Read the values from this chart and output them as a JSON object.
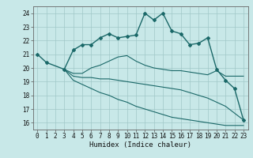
{
  "xlabel": "Humidex (Indice chaleur)",
  "bg_color": "#c8e8e8",
  "grid_color": "#a0c8c8",
  "line_color": "#1a6868",
  "xlim": [
    -0.5,
    23.5
  ],
  "ylim": [
    15.5,
    24.5
  ],
  "xticks": [
    0,
    1,
    2,
    3,
    4,
    5,
    6,
    7,
    8,
    9,
    10,
    11,
    12,
    13,
    14,
    15,
    16,
    17,
    18,
    19,
    20,
    21,
    22,
    23
  ],
  "yticks": [
    16,
    17,
    18,
    19,
    20,
    21,
    22,
    23,
    24
  ],
  "line1_x": [
    0,
    1,
    3,
    4,
    5,
    6,
    7,
    8,
    9,
    10,
    11,
    12,
    13,
    14,
    15,
    16,
    17,
    18,
    19,
    20,
    21,
    22,
    23
  ],
  "line1_y": [
    21.0,
    20.4,
    19.9,
    21.3,
    21.7,
    21.7,
    22.2,
    22.5,
    22.2,
    22.3,
    22.4,
    24.0,
    23.5,
    24.0,
    22.7,
    22.5,
    21.7,
    21.8,
    22.2,
    19.9,
    19.1,
    18.5,
    16.2
  ],
  "line2_x": [
    3,
    4,
    5,
    6,
    7,
    8,
    9,
    10,
    11,
    12,
    13,
    14,
    15,
    16,
    17,
    18,
    19,
    20,
    21,
    22,
    23
  ],
  "line2_y": [
    19.9,
    19.6,
    19.6,
    20.0,
    20.2,
    20.5,
    20.8,
    20.9,
    20.5,
    20.2,
    20.0,
    19.9,
    19.8,
    19.8,
    19.7,
    19.6,
    19.5,
    19.8,
    19.4,
    19.4,
    19.4
  ],
  "line3_x": [
    3,
    4,
    5,
    6,
    7,
    8,
    9,
    10,
    11,
    12,
    13,
    14,
    15,
    16,
    17,
    18,
    19,
    20,
    21,
    22,
    23
  ],
  "line3_y": [
    19.9,
    19.4,
    19.3,
    19.3,
    19.2,
    19.2,
    19.1,
    19.0,
    18.9,
    18.8,
    18.7,
    18.6,
    18.5,
    18.4,
    18.2,
    18.0,
    17.8,
    17.5,
    17.2,
    16.7,
    16.2
  ],
  "line4_x": [
    3,
    4,
    5,
    6,
    7,
    8,
    9,
    10,
    11,
    12,
    13,
    14,
    15,
    16,
    17,
    18,
    19,
    20,
    21,
    22,
    23
  ],
  "line4_y": [
    19.9,
    19.1,
    18.8,
    18.5,
    18.2,
    18.0,
    17.7,
    17.5,
    17.2,
    17.0,
    16.8,
    16.6,
    16.4,
    16.3,
    16.2,
    16.1,
    16.0,
    15.9,
    15.8,
    15.8,
    15.8
  ],
  "lw1": 1.0,
  "lw234": 0.8,
  "marker1": "D",
  "ms1": 2.0,
  "tick_fontsize": 5.5,
  "xlabel_fontsize": 6.5
}
